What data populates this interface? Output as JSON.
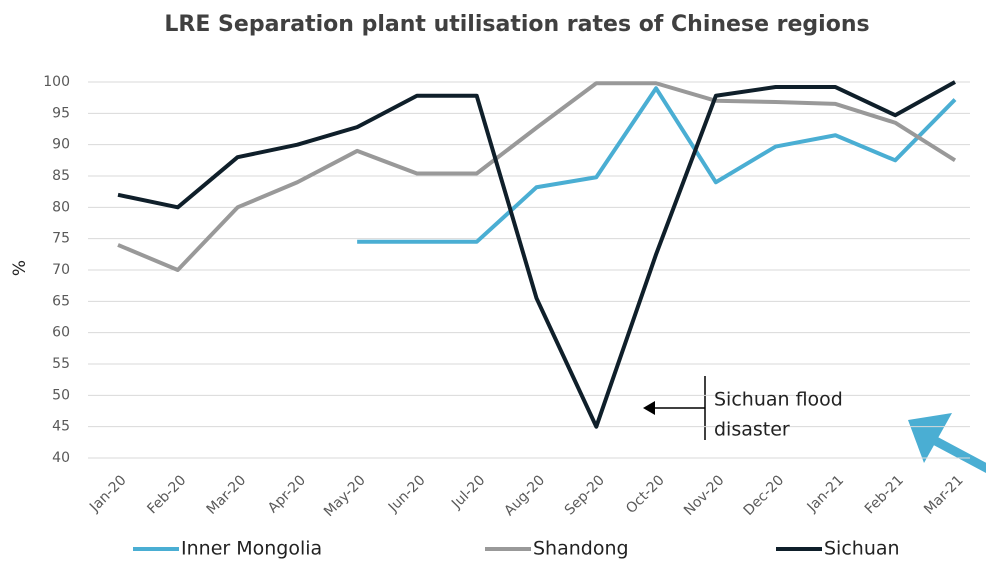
{
  "chart_data": {
    "type": "line",
    "title": "LRE Separation plant utilisation rates of Chinese regions",
    "y_label": "%",
    "categories": [
      "Jan-20",
      "Feb-20",
      "Mar-20",
      "Apr-20",
      "May-20",
      "Jun-20",
      "Jul-20",
      "Aug-20",
      "Sep-20",
      "Oct-20",
      "Nov-20",
      "Dec-20",
      "Jan-21",
      "Feb-21",
      "Mar-21"
    ],
    "series": [
      {
        "name": "Inner Mongolia",
        "color": "#4aaed3",
        "values": [
          null,
          null,
          null,
          null,
          74.5,
          74.5,
          74.5,
          83.2,
          84.8,
          99,
          84,
          89.7,
          91.5,
          87.5,
          97.2
        ]
      },
      {
        "name": "Shandong",
        "color": "#999999",
        "values": [
          74,
          70,
          80,
          84,
          89,
          85.4,
          85.4,
          92.7,
          99.8,
          99.8,
          97,
          96.8,
          96.5,
          93.5,
          87.5
        ]
      },
      {
        "name": "Sichuan",
        "color": "#0f1f2a",
        "values": [
          82,
          80,
          88,
          90,
          92.8,
          97.8,
          97.8,
          65.5,
          45,
          72.5,
          97.8,
          99.2,
          99.2,
          94.7,
          100
        ]
      }
    ],
    "ylim": [
      40,
      100
    ],
    "yticks": [
      40,
      45,
      50,
      55,
      60,
      65,
      70,
      75,
      80,
      85,
      90,
      95,
      100
    ],
    "grid": true,
    "legend": "bottom",
    "annotation_lines": [
      "Sichuan flood",
      "disaster"
    ]
  }
}
